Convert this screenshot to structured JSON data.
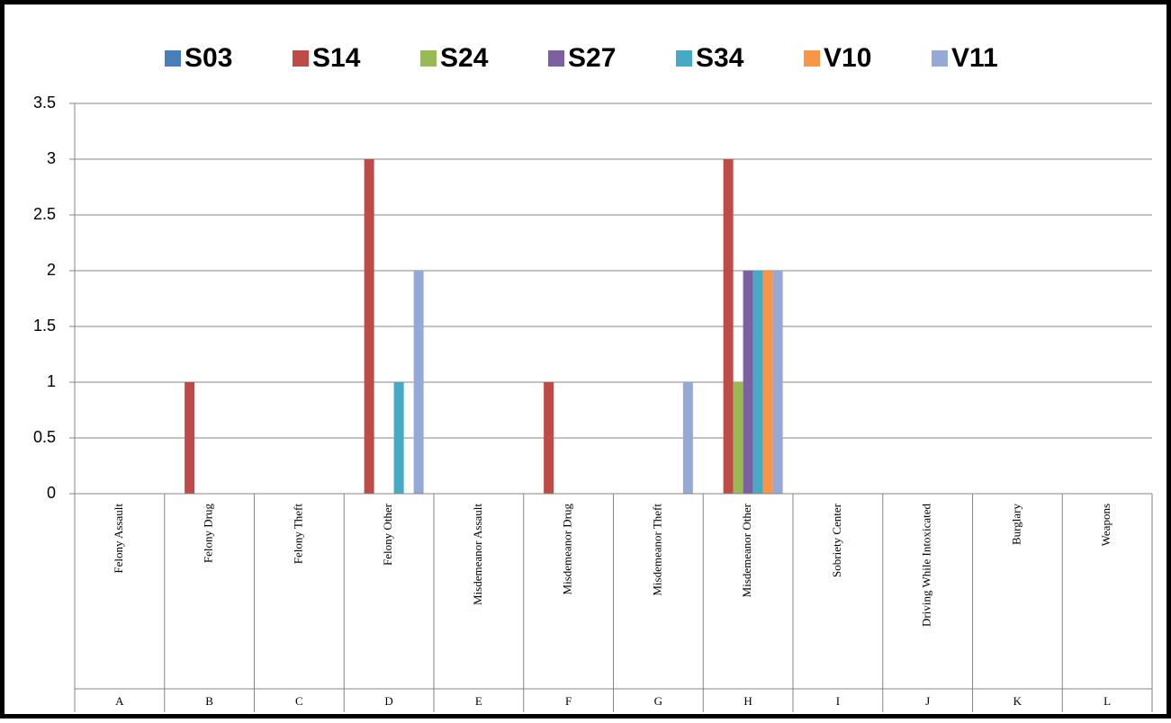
{
  "chart_data": {
    "type": "bar",
    "categories": [
      "Felony Assault",
      "Felony Drug",
      "Felony Theft",
      "Felony Other",
      "Misdemeanor Assault",
      "Misdemeanor Drug",
      "Misdemeanor Theft",
      "Misdemeanor Other",
      "Sobriety Center",
      "Driving While Intoxicated",
      "Burglary",
      "Weapons"
    ],
    "category_codes": [
      "A",
      "B",
      "C",
      "D",
      "E",
      "F",
      "G",
      "H",
      "I",
      "J",
      "K",
      "L"
    ],
    "series": [
      {
        "name": "S03",
        "color": "#4a7ebb",
        "values": [
          0,
          0,
          0,
          0,
          0,
          0,
          0,
          0,
          0,
          0,
          0,
          0
        ]
      },
      {
        "name": "S14",
        "color": "#be4b48",
        "values": [
          0,
          1,
          0,
          3,
          0,
          1,
          0,
          3,
          0,
          0,
          0,
          0
        ]
      },
      {
        "name": "S24",
        "color": "#98b954",
        "values": [
          0,
          0,
          0,
          0,
          0,
          0,
          0,
          1,
          0,
          0,
          0,
          0
        ]
      },
      {
        "name": "S27",
        "color": "#7d60a0",
        "values": [
          0,
          0,
          0,
          0,
          0,
          0,
          0,
          2,
          0,
          0,
          0,
          0
        ]
      },
      {
        "name": "S34",
        "color": "#46aac5",
        "values": [
          0,
          0,
          0,
          1,
          0,
          0,
          0,
          2,
          0,
          0,
          0,
          0
        ]
      },
      {
        "name": "V10",
        "color": "#f79646",
        "values": [
          0,
          0,
          0,
          0,
          0,
          0,
          0,
          2,
          0,
          0,
          0,
          0
        ]
      },
      {
        "name": "V11",
        "color": "#94a9d6",
        "values": [
          0,
          0,
          0,
          2,
          0,
          0,
          1,
          2,
          0,
          0,
          0,
          0
        ]
      }
    ],
    "ylim": [
      0,
      3.5
    ],
    "yticks": [
      0,
      0.5,
      1,
      1.5,
      2,
      2.5,
      3,
      3.5
    ],
    "grid": true,
    "legend": "top"
  }
}
